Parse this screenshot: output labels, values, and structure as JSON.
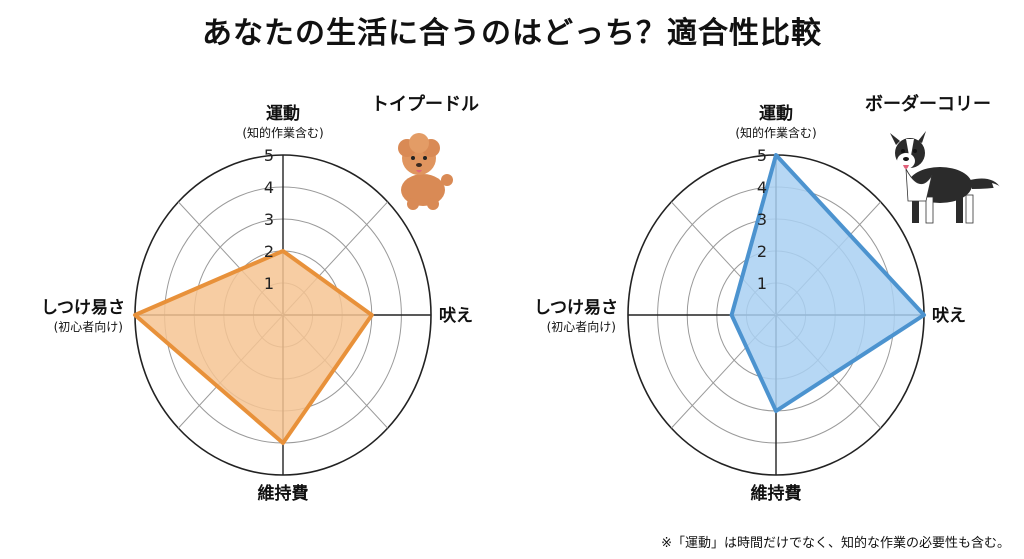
{
  "title": "あなたの生活に合うのはどっち？適合性比較",
  "footnote": "※「運動」は時間だけでなく、知的な作業の必要性も含む。",
  "colors": {
    "poodle": "#E8913A",
    "collie": "#4C93CF"
  },
  "chart_data": [
    {
      "type": "radar",
      "series_name": "トイプードル",
      "axes": [
        "運動",
        "吠え",
        "維持費",
        "しつけ易さ"
      ],
      "axis_sublabels": [
        "(知的作業含む)",
        "",
        "",
        "(初心者向け)"
      ],
      "values": [
        2,
        3,
        4,
        5
      ],
      "ticks": [
        "1",
        "2",
        "3",
        "4",
        "5"
      ],
      "range": [
        0,
        5
      ],
      "fill": "#F6C493",
      "stroke": "#E8913A",
      "icon": "toy-poodle-illustration"
    },
    {
      "type": "radar",
      "series_name": "ボーダーコリー",
      "axes": [
        "運動",
        "吠え",
        "維持費",
        "しつけ易さ"
      ],
      "axis_sublabels": [
        "(知的作業含む)",
        "",
        "",
        "(初心者向け)"
      ],
      "values": [
        5,
        5,
        3,
        1.5
      ],
      "ticks": [
        "1",
        "2",
        "3",
        "4",
        "5"
      ],
      "range": [
        0,
        5
      ],
      "fill": "#A9D0F2",
      "stroke": "#4C93CF",
      "icon": "border-collie-illustration"
    }
  ]
}
